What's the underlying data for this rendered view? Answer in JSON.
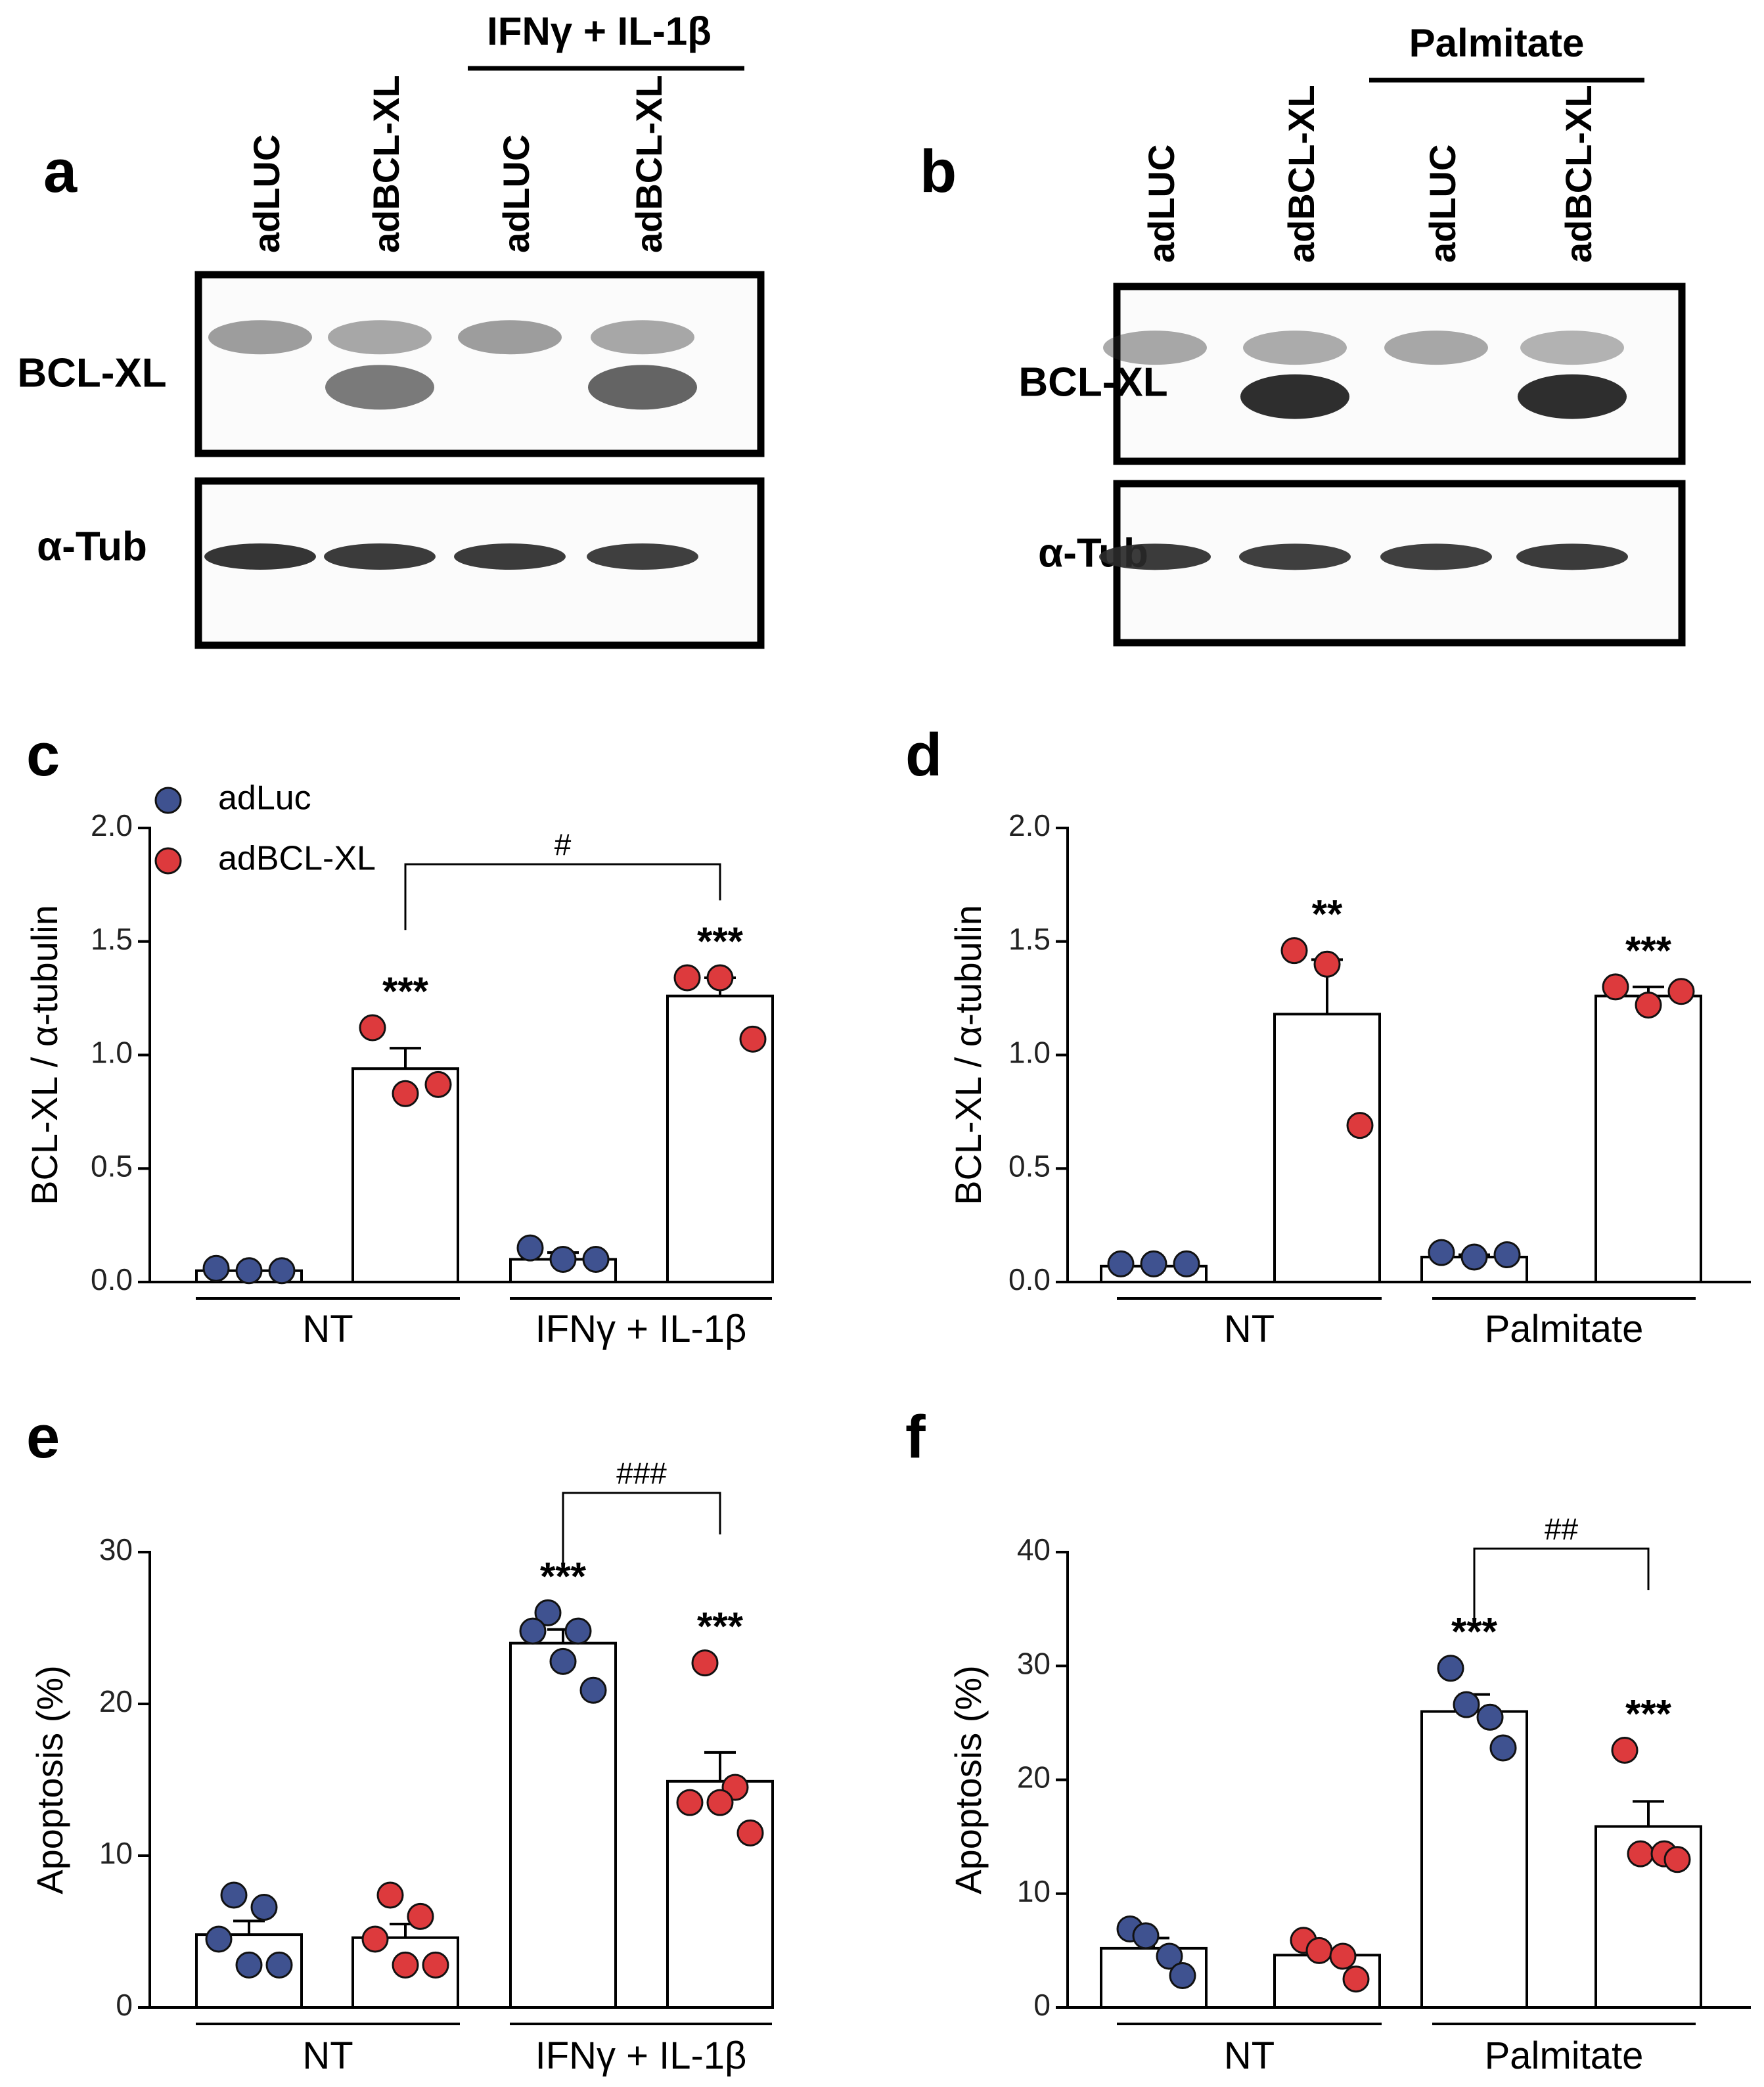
{
  "colors": {
    "adLuc": "#3f5290",
    "adBCLXL": "#dd3a3d",
    "axis": "#000000",
    "bar_fill": "#ffffff",
    "blot_bg": "#fbfbfb",
    "band": "#2a2a2a"
  },
  "panels": {
    "a": {
      "letter": "a",
      "treatment": "IFNγ + IL-1β",
      "lanes": [
        "adLUC",
        "adBCL-XL",
        "adLUC",
        "adBCL-XL"
      ],
      "blots": [
        {
          "label": "BCL-XL",
          "upper_band": [
            0.45,
            0.4,
            0.45,
            0.4
          ],
          "lower_band": [
            0.0,
            0.62,
            0.0,
            0.72
          ]
        },
        {
          "label": "α-Tub",
          "band": [
            0.95,
            0.92,
            0.92,
            0.9
          ]
        }
      ]
    },
    "b": {
      "letter": "b",
      "treatment": "Palmitate",
      "lanes": [
        "adLUC",
        "adBCL-XL",
        "adLUC",
        "adBCL-XL"
      ],
      "blots": [
        {
          "label": "BCL-XL",
          "upper_band": [
            0.4,
            0.38,
            0.4,
            0.35
          ],
          "lower_band": [
            0.0,
            0.98,
            0.0,
            0.98
          ]
        },
        {
          "label": "α-Tub",
          "band": [
            0.92,
            0.9,
            0.9,
            0.92
          ]
        }
      ]
    }
  },
  "legend": {
    "adLuc": "adLuc",
    "adBCLXL": "adBCL-XL"
  },
  "chart_data": [
    {
      "id": "c",
      "letter": "c",
      "type": "bar",
      "ylabel": "BCL-XL / α-tubulin",
      "ylim": [
        0,
        2.0
      ],
      "yticks": [
        0.0,
        0.5,
        1.0,
        1.5,
        2.0
      ],
      "ytick_labels": [
        "0.0",
        "0.5",
        "1.0",
        "1.5",
        "2.0"
      ],
      "groups": [
        "NT",
        "IFNγ + IL-1β"
      ],
      "series": [
        {
          "name": "adLuc",
          "means": [
            0.05,
            0.1
          ],
          "sem": [
            0.0,
            0.03
          ],
          "points": [
            [
              0.06,
              0.05,
              0.05
            ],
            [
              0.15,
              0.1,
              0.1
            ]
          ]
        },
        {
          "name": "adBCL-XL",
          "means": [
            0.94,
            1.26
          ],
          "sem": [
            0.09,
            0.08
          ],
          "points": [
            [
              1.12,
              0.83,
              0.87
            ],
            [
              1.34,
              1.34,
              1.07
            ]
          ]
        }
      ],
      "stars": [
        {
          "group": 0,
          "series": 1,
          "text": "***"
        },
        {
          "group": 1,
          "series": 1,
          "text": "***"
        }
      ],
      "bracket": {
        "from": [
          0,
          1
        ],
        "to": [
          1,
          1
        ],
        "text": "#",
        "y": 1.84
      }
    },
    {
      "id": "d",
      "letter": "d",
      "type": "bar",
      "ylabel": "BCL-XL / α-tubulin",
      "ylim": [
        0,
        2.0
      ],
      "yticks": [
        0.0,
        0.5,
        1.0,
        1.5,
        2.0
      ],
      "ytick_labels": [
        "0.0",
        "0.5",
        "1.0",
        "1.5",
        "2.0"
      ],
      "groups": [
        "NT",
        "Palmitate"
      ],
      "series": [
        {
          "name": "adLuc",
          "means": [
            0.07,
            0.11
          ],
          "sem": [
            0.0,
            0.01
          ],
          "points": [
            [
              0.08,
              0.08,
              0.08
            ],
            [
              0.13,
              0.11,
              0.12
            ]
          ]
        },
        {
          "name": "adBCL-XL",
          "means": [
            1.18,
            1.26
          ],
          "sem": [
            0.24,
            0.04
          ],
          "points": [
            [
              1.46,
              1.4,
              0.69
            ],
            [
              1.3,
              1.22,
              1.28
            ]
          ]
        }
      ],
      "stars": [
        {
          "group": 0,
          "series": 1,
          "text": "**"
        },
        {
          "group": 1,
          "series": 1,
          "text": "***"
        }
      ],
      "bracket": null
    },
    {
      "id": "e",
      "letter": "e",
      "type": "bar",
      "ylabel": "Apoptosis (%)",
      "ylim": [
        0,
        30
      ],
      "yticks": [
        0,
        10,
        20,
        30
      ],
      "ytick_labels": [
        "0",
        "10",
        "20",
        "30"
      ],
      "groups": [
        "NT",
        "IFNγ + IL-1β"
      ],
      "series": [
        {
          "name": "adLuc",
          "means": [
            4.8,
            24.0
          ],
          "sem": [
            0.9,
            0.9
          ],
          "points": [
            [
              7.4,
              6.6,
              4.5,
              2.8,
              2.8
            ],
            [
              26.0,
              24.8,
              24.8,
              22.8,
              20.9
            ]
          ]
        },
        {
          "name": "adBCL-XL",
          "means": [
            4.6,
            14.9
          ],
          "sem": [
            0.9,
            1.9
          ],
          "points": [
            [
              7.4,
              6.0,
              4.5,
              2.8,
              2.8
            ],
            [
              22.7,
              14.5,
              13.5,
              13.5,
              11.5
            ]
          ]
        }
      ],
      "stars": [
        {
          "group": 1,
          "series": 0,
          "text": "***"
        },
        {
          "group": 1,
          "series": 1,
          "text": "***"
        }
      ],
      "bracket": {
        "from": [
          1,
          0
        ],
        "to": [
          1,
          1
        ],
        "text": "###",
        "y": 33.9
      }
    },
    {
      "id": "f",
      "letter": "f",
      "type": "bar",
      "ylabel": "Apoptosis (%)",
      "ylim": [
        0,
        40
      ],
      "yticks": [
        0,
        10,
        20,
        30,
        40
      ],
      "ytick_labels": [
        "0",
        "10",
        "20",
        "30",
        "40"
      ],
      "groups": [
        "NT",
        "Palmitate"
      ],
      "series": [
        {
          "name": "adLuc",
          "means": [
            5.2,
            26.0
          ],
          "sem": [
            0.9,
            1.5
          ],
          "points": [
            [
              6.9,
              6.3,
              4.5,
              2.8
            ],
            [
              29.8,
              26.6,
              25.5,
              22.8
            ]
          ]
        },
        {
          "name": "adBCL-XL",
          "means": [
            4.6,
            15.9
          ],
          "sem": [
            0.5,
            2.2
          ],
          "points": [
            [
              5.9,
              5.0,
              4.5,
              2.5
            ],
            [
              22.6,
              13.5,
              13.5,
              13.0
            ]
          ]
        }
      ],
      "stars": [
        {
          "group": 1,
          "series": 0,
          "text": "***"
        },
        {
          "group": 1,
          "series": 1,
          "text": "***"
        }
      ],
      "bracket": {
        "from": [
          1,
          0
        ],
        "to": [
          1,
          1
        ],
        "text": "##",
        "y": 40.3
      }
    }
  ]
}
